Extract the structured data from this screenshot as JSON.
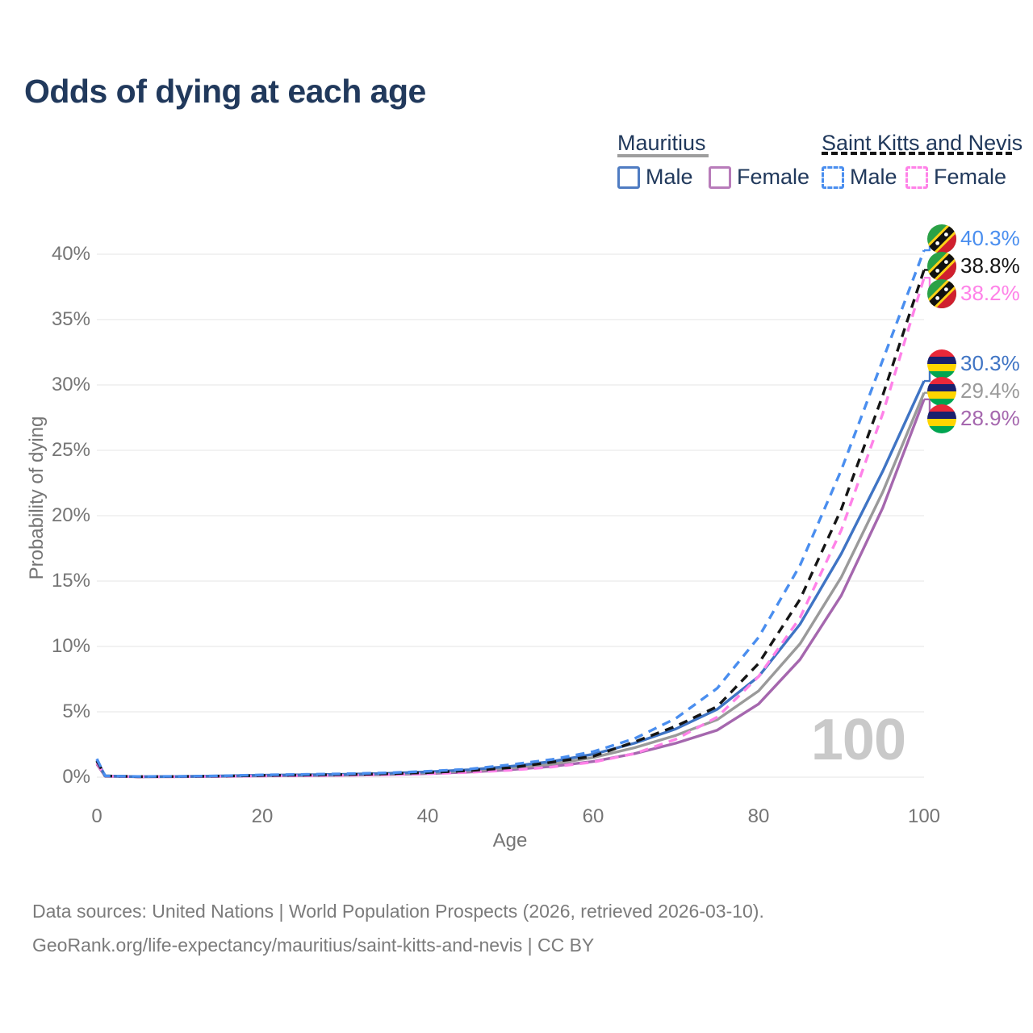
{
  "title": "Odds of dying at each age",
  "legend": {
    "groups": [
      {
        "id": "mauritius",
        "label": "Mauritius",
        "line_style": "solid",
        "underline_color": "#9e9e9e",
        "items": [
          {
            "id": "mauritius-male",
            "label": "Male",
            "color": "#4f7cc2"
          },
          {
            "id": "mauritius-female",
            "label": "Female",
            "color": "#b87cba"
          }
        ]
      },
      {
        "id": "saint-kitts-and-nevis",
        "label": "Saint Kitts and Nevis",
        "line_style": "dashed",
        "underline_color": "#141414",
        "items": [
          {
            "id": "skn-male",
            "label": "Male",
            "color": "#4a8eef"
          },
          {
            "id": "skn-female",
            "label": "Female",
            "color": "#ff82e8"
          }
        ]
      }
    ]
  },
  "chart_data": {
    "type": "line",
    "title": "Odds of dying at each age",
    "xlabel": "Age",
    "ylabel": "Probability of dying",
    "xlim": [
      0,
      100
    ],
    "ylim_percent": [
      0,
      40
    ],
    "x_ticks": [
      0,
      20,
      40,
      60,
      80,
      100
    ],
    "y_ticks": [
      "0%",
      "5%",
      "10%",
      "15%",
      "20%",
      "25%",
      "30%",
      "35%",
      "40%"
    ],
    "grid": true,
    "legend_position": "top-right",
    "hover_age_watermark": "100",
    "ages": [
      0,
      1,
      5,
      10,
      15,
      20,
      25,
      30,
      35,
      40,
      45,
      50,
      55,
      60,
      65,
      70,
      75,
      80,
      85,
      90,
      95,
      100
    ],
    "series": [
      {
        "id": "mauritius-female",
        "name": "Mauritius Female",
        "country": "Mauritius",
        "flag": "mu",
        "style": "solid",
        "color": "#a567ae",
        "end_label": "28.9%",
        "values": [
          1.0,
          0.07,
          0.03,
          0.04,
          0.06,
          0.1,
          0.12,
          0.15,
          0.2,
          0.27,
          0.39,
          0.57,
          0.82,
          1.2,
          1.8,
          2.6,
          3.6,
          5.6,
          9.0,
          13.9,
          20.6,
          28.9
        ]
      },
      {
        "id": "mauritius-combined",
        "name": "Mauritius",
        "country": "Mauritius",
        "flag": "mu",
        "style": "solid",
        "color": "#9a9a9a",
        "end_label": "29.4%",
        "values": [
          1.2,
          0.08,
          0.035,
          0.045,
          0.08,
          0.13,
          0.16,
          0.19,
          0.25,
          0.34,
          0.49,
          0.7,
          1.0,
          1.5,
          2.25,
          3.2,
          4.4,
          6.6,
          10.2,
          15.3,
          21.8,
          29.4
        ]
      },
      {
        "id": "mauritius-male",
        "name": "Mauritius Male",
        "country": "Mauritius",
        "flag": "mu",
        "style": "solid",
        "color": "#3f74c4",
        "end_label": "30.3%",
        "values": [
          1.3,
          0.09,
          0.04,
          0.05,
          0.09,
          0.15,
          0.18,
          0.22,
          0.29,
          0.4,
          0.57,
          0.83,
          1.2,
          1.75,
          2.6,
          3.7,
          5.2,
          7.7,
          11.7,
          17.1,
          23.4,
          30.3
        ]
      },
      {
        "id": "skn-female",
        "name": "Saint Kitts and Nevis Female",
        "country": "Saint Kitts and Nevis",
        "flag": "kn",
        "style": "dashed",
        "color": "#ff82e8",
        "end_label": "38.2%",
        "values": [
          1.1,
          0.08,
          0.03,
          0.04,
          0.06,
          0.09,
          0.11,
          0.14,
          0.19,
          0.26,
          0.37,
          0.53,
          0.78,
          1.15,
          1.8,
          2.9,
          4.6,
          7.7,
          12.2,
          18.9,
          27.8,
          38.2
        ]
      },
      {
        "id": "skn-combined",
        "name": "Saint Kitts and Nevis",
        "country": "Saint Kitts and Nevis",
        "flag": "kn",
        "style": "dashed",
        "color": "#151515",
        "end_label": "38.8%",
        "values": [
          1.25,
          0.09,
          0.04,
          0.05,
          0.08,
          0.13,
          0.16,
          0.2,
          0.26,
          0.35,
          0.5,
          0.72,
          1.15,
          1.6,
          2.7,
          3.9,
          5.4,
          8.7,
          13.6,
          20.5,
          29.2,
          38.8
        ]
      },
      {
        "id": "skn-male",
        "name": "Saint Kitts and Nevis Male",
        "country": "Saint Kitts and Nevis",
        "flag": "kn",
        "style": "dashed",
        "color": "#4a8eef",
        "end_label": "40.3%",
        "values": [
          1.4,
          0.1,
          0.05,
          0.06,
          0.1,
          0.17,
          0.21,
          0.26,
          0.33,
          0.45,
          0.62,
          0.95,
          1.35,
          1.95,
          2.95,
          4.5,
          6.8,
          10.7,
          16.2,
          23.5,
          31.9,
          40.3
        ]
      }
    ],
    "flag_colors": {
      "mu": {
        "red": "#ea2839",
        "blue": "#1a206d",
        "yellow": "#ffd500",
        "green": "#00a551"
      },
      "kn": {
        "green": "#2aa146",
        "red": "#d01f2e",
        "yellow": "#fcd116",
        "black": "#111111",
        "white": "#ffffff"
      }
    }
  },
  "footer": {
    "line1": "Data sources: United Nations | World Population Prospects (2026, retrieved 2026-03-10).",
    "line2": "GeoRank.org/life-expectancy/mauritius/saint-kitts-and-nevis | CC BY"
  }
}
